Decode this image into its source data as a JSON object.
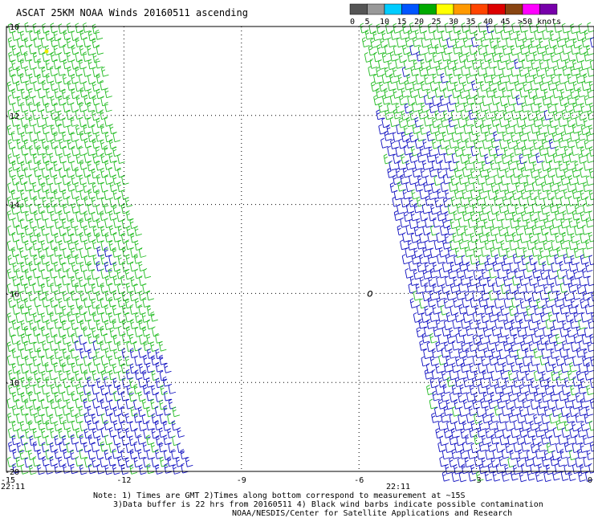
{
  "title": "ASCAT 25KM NOAA Winds 20160511 ascending",
  "legend": {
    "bins": [
      {
        "label": "0",
        "color": "#555555"
      },
      {
        "label": "5",
        "color": "#999999"
      },
      {
        "label": "10",
        "color": "#00ccff"
      },
      {
        "label": "15",
        "color": "#0055ff"
      },
      {
        "label": "20",
        "color": "#00aa00"
      },
      {
        "label": "25",
        "color": "#ffff00"
      },
      {
        "label": "30",
        "color": "#ff9900"
      },
      {
        "label": "35",
        "color": "#ff4400"
      },
      {
        "label": "40",
        "color": "#dd0000"
      },
      {
        "label": "45",
        "color": "#884411"
      },
      {
        "label": ">50 knots",
        "color": "#ff00ff"
      },
      {
        "label": "",
        "color": "#7700aa"
      }
    ]
  },
  "map": {
    "lon_ticks": [
      "-15",
      "-12",
      "-9",
      "-6",
      "-3",
      "0"
    ],
    "lat_ticks": [
      "-10",
      "-12",
      "-14",
      "-16",
      "-18",
      "-20"
    ],
    "lon_range": [
      -15,
      0
    ],
    "lat_range": [
      -20,
      -10
    ],
    "time_labels": [
      {
        "text": "22:11",
        "lon": -15
      },
      {
        "text": "22:11",
        "lon": -5
      }
    ],
    "marker": {
      "text": "o",
      "lon": -5.8,
      "lat": -16
    },
    "barb_colors": {
      "green": "#22bb22",
      "blue": "#1010c0",
      "yellow": "#eeee00",
      "contaminated": "#000000"
    }
  },
  "footer": {
    "line1": "Note: 1) Times are GMT 2)Times along bottom correspond to measurement at ~15S",
    "line2": "3)Data buffer is 22 hrs from 20160511 4) Black wind barbs indicate possible contamination",
    "line3": "NOAA/NESDIS/Center for Satellite Applications and Research"
  }
}
